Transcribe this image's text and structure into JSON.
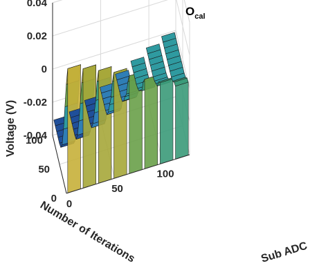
{
  "chart_data": {
    "type": "surface",
    "title": "O",
    "title_subscript": "cal",
    "xlabel": "Sub ADC",
    "ylabel": "Number of Iterations",
    "zlabel": "Voltage (V)",
    "xlim": [
      0,
      128
    ],
    "ylim": [
      0,
      100
    ],
    "zlim": [
      -0.04,
      0.04
    ],
    "x_ticks": [
      "0",
      "50",
      "100"
    ],
    "y_ticks": [
      "0",
      "50",
      "100"
    ],
    "z_ticks": [
      "-0.04",
      "-0.02",
      "0",
      "0.02",
      "0.04"
    ],
    "grid": true,
    "colormap": [
      "#1b2a6b",
      "#1f4f9a",
      "#2f7eb6",
      "#2f9aa0",
      "#3b9b7a",
      "#6aa04a",
      "#a7a83a",
      "#c7b13a"
    ],
    "iterations": [
      0,
      10,
      20,
      30,
      40,
      50,
      60,
      70,
      80,
      90,
      100
    ],
    "series": [
      {
        "values": [
          0.035,
          0.022,
          0.005,
          -0.012,
          -0.025,
          -0.03,
          -0.031,
          -0.031,
          -0.031,
          -0.031,
          -0.031
        ]
      },
      {
        "values": [
          0.032,
          0.02,
          0.004,
          -0.01,
          -0.022,
          -0.028,
          -0.029,
          -0.029,
          -0.029,
          -0.029,
          -0.029
        ]
      },
      {
        "values": [
          0.028,
          0.018,
          0.003,
          -0.008,
          -0.018,
          -0.024,
          -0.025,
          -0.025,
          -0.025,
          -0.025,
          -0.025
        ]
      },
      {
        "values": [
          0.024,
          0.015,
          0.002,
          -0.006,
          -0.014,
          -0.019,
          -0.02,
          -0.02,
          -0.02,
          -0.02,
          -0.02
        ]
      },
      {
        "values": [
          0.019,
          0.012,
          0.001,
          -0.004,
          -0.01,
          -0.014,
          -0.015,
          -0.015,
          -0.015,
          -0.015,
          -0.015
        ]
      },
      {
        "values": [
          0.014,
          0.009,
          0.0,
          -0.003,
          -0.007,
          -0.009,
          -0.01,
          -0.01,
          -0.01,
          -0.01,
          -0.01
        ]
      },
      {
        "values": [
          0.009,
          0.006,
          0.0,
          -0.002,
          -0.004,
          -0.005,
          -0.005,
          -0.005,
          -0.005,
          -0.005,
          -0.005
        ]
      },
      {
        "values": [
          0.004,
          0.003,
          0.0,
          -0.001,
          -0.001,
          -0.001,
          -0.001,
          -0.001,
          -0.001,
          -0.001,
          -0.001
        ]
      }
    ]
  }
}
